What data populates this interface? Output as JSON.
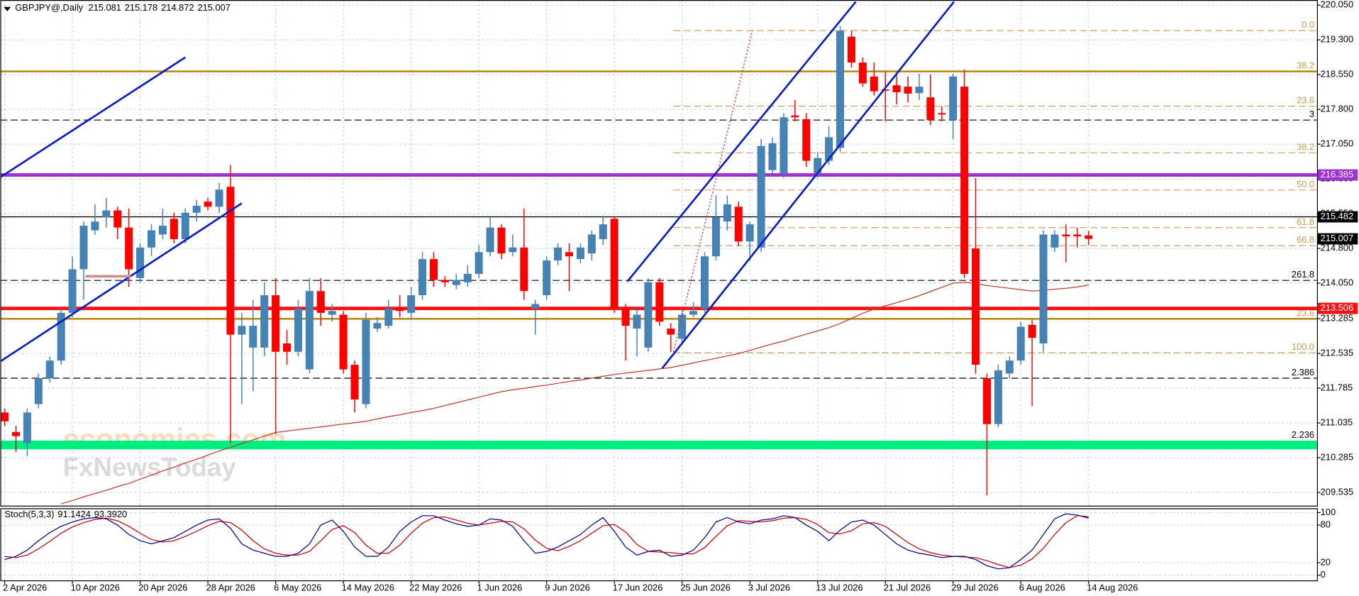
{
  "chart_data": {
    "type": "candlestick",
    "symbol": "GBPJPY@,Daily",
    "categories": [
      "2 Apr 2026",
      null,
      null,
      null,
      null,
      null,
      "10 Apr 2026",
      null,
      null,
      null,
      null,
      null,
      "20 Apr 2026",
      null,
      null,
      null,
      null,
      null,
      "28 Apr 2026",
      null,
      null,
      null,
      null,
      null,
      "6 May 2026",
      null,
      null,
      null,
      null,
      null,
      "14 May 2026",
      null,
      null,
      null,
      null,
      null,
      "22 May 2026",
      null,
      null,
      null,
      null,
      null,
      "1 Jun 2026",
      null,
      null,
      null,
      null,
      null,
      "9 Jun 2026",
      null,
      null,
      null,
      null,
      null,
      "17 Jun 2026",
      null,
      null,
      null,
      null,
      null,
      "25 Jun 2026",
      null,
      null,
      null,
      null,
      null,
      "3 Jul 2026",
      null,
      null,
      null,
      null,
      null,
      "13 Jul 2026",
      null,
      null,
      null,
      null,
      null,
      "21 Jul 2026",
      null,
      null,
      null,
      null,
      null,
      "29 Jul 2026",
      null,
      null,
      null,
      null,
      null,
      "6 Aug 2026",
      null,
      null,
      null,
      null,
      null,
      "14 Aug 2026"
    ],
    "ohlc": [
      [
        211.26,
        211.35,
        210.97,
        211.07
      ],
      [
        210.84,
        210.97,
        210.41,
        210.75
      ],
      [
        210.6,
        211.35,
        210.32,
        211.26
      ],
      [
        211.44,
        212.1,
        211.35,
        212.0
      ],
      [
        212.0,
        212.47,
        211.91,
        212.38
      ],
      [
        212.38,
        213.5,
        212.29,
        213.41
      ],
      [
        213.41,
        214.63,
        213.32,
        214.35
      ],
      [
        214.35,
        215.38,
        213.69,
        215.29
      ],
      [
        215.19,
        215.75,
        215.1,
        215.38
      ],
      [
        215.47,
        215.89,
        215.25,
        215.62
      ],
      [
        215.62,
        215.7,
        215.0,
        215.25
      ],
      [
        215.25,
        215.66,
        213.97,
        214.35
      ],
      [
        214.16,
        214.91,
        214.07,
        214.82
      ],
      [
        214.82,
        215.32,
        214.63,
        215.19
      ],
      [
        215.1,
        215.66,
        215.0,
        215.29
      ],
      [
        215.44,
        215.57,
        214.91,
        215.0
      ],
      [
        215.0,
        215.66,
        214.91,
        215.57
      ],
      [
        215.57,
        215.85,
        215.38,
        215.72
      ],
      [
        215.81,
        215.89,
        215.62,
        215.7
      ],
      [
        215.7,
        216.22,
        215.57,
        216.07
      ],
      [
        216.13,
        216.6,
        210.6,
        212.94
      ],
      [
        212.94,
        213.41,
        211.44,
        213.13
      ],
      [
        212.66,
        213.69,
        211.72,
        213.13
      ],
      [
        212.66,
        214.07,
        212.47,
        213.79
      ],
      [
        213.79,
        214.16,
        210.79,
        212.57
      ],
      [
        212.75,
        213.04,
        212.29,
        212.57
      ],
      [
        212.57,
        213.69,
        212.47,
        213.5
      ],
      [
        212.19,
        214.16,
        212.1,
        213.88
      ],
      [
        213.88,
        214.16,
        213.13,
        213.41
      ],
      [
        213.37,
        213.6,
        213.22,
        213.45
      ],
      [
        213.37,
        213.45,
        212.1,
        212.19
      ],
      [
        212.29,
        212.38,
        211.26,
        211.54
      ],
      [
        211.44,
        213.41,
        211.35,
        213.26
      ],
      [
        213.07,
        213.32,
        213.0,
        213.19
      ],
      [
        213.13,
        213.69,
        213.07,
        213.5
      ],
      [
        213.5,
        213.79,
        213.32,
        213.45
      ],
      [
        213.41,
        213.97,
        213.26,
        213.79
      ],
      [
        213.79,
        214.72,
        213.69,
        214.57
      ],
      [
        214.57,
        214.72,
        213.97,
        214.12
      ],
      [
        214.12,
        214.2,
        213.97,
        214.07
      ],
      [
        214.01,
        214.25,
        213.92,
        214.12
      ],
      [
        214.07,
        214.44,
        213.97,
        214.25
      ],
      [
        214.25,
        214.87,
        214.16,
        214.72
      ],
      [
        214.72,
        215.47,
        214.63,
        215.25
      ],
      [
        215.25,
        215.32,
        214.57,
        214.69
      ],
      [
        214.72,
        215.1,
        214.63,
        214.82
      ],
      [
        214.82,
        215.66,
        213.69,
        213.88
      ],
      [
        213.5,
        213.69,
        212.94,
        213.6
      ],
      [
        213.79,
        214.63,
        213.69,
        214.54
      ],
      [
        214.54,
        214.91,
        214.44,
        214.82
      ],
      [
        214.72,
        214.91,
        213.88,
        214.63
      ],
      [
        214.57,
        214.91,
        214.48,
        214.82
      ],
      [
        214.69,
        215.19,
        214.54,
        215.1
      ],
      [
        215.0,
        215.51,
        214.87,
        215.32
      ],
      [
        215.44,
        215.47,
        213.41,
        213.5
      ],
      [
        213.5,
        213.6,
        212.38,
        213.13
      ],
      [
        213.07,
        213.5,
        212.47,
        213.37
      ],
      [
        212.66,
        214.16,
        212.57,
        214.07
      ],
      [
        214.07,
        214.16,
        213.13,
        213.22
      ],
      [
        213.07,
        213.19,
        212.57,
        212.94
      ],
      [
        212.85,
        213.5,
        212.75,
        213.37
      ],
      [
        213.37,
        213.64,
        213.32,
        213.45
      ],
      [
        213.5,
        214.72,
        213.41,
        214.63
      ],
      [
        214.63,
        215.94,
        214.54,
        215.47
      ],
      [
        215.38,
        215.94,
        215.19,
        215.75
      ],
      [
        215.7,
        215.81,
        214.85,
        214.95
      ],
      [
        214.95,
        215.38,
        214.54,
        215.32
      ],
      [
        214.82,
        217.16,
        214.72,
        217.01
      ],
      [
        216.49,
        217.2,
        216.41,
        217.07
      ],
      [
        216.41,
        217.72,
        216.32,
        217.63
      ],
      [
        217.67,
        218.0,
        217.54,
        217.63
      ],
      [
        217.59,
        217.72,
        216.56,
        216.69
      ],
      [
        216.41,
        216.88,
        216.32,
        216.75
      ],
      [
        216.69,
        217.44,
        216.6,
        217.2
      ],
      [
        216.97,
        219.6,
        216.88,
        219.5
      ],
      [
        219.37,
        219.5,
        218.7,
        218.81
      ],
      [
        218.81,
        218.92,
        218.29,
        218.36
      ],
      [
        218.51,
        218.81,
        218.1,
        218.19
      ],
      [
        218.23,
        218.62,
        217.54,
        218.21
      ],
      [
        218.32,
        218.57,
        217.91,
        218.17
      ],
      [
        218.29,
        218.51,
        217.95,
        218.14
      ],
      [
        218.15,
        218.57,
        218.0,
        218.29
      ],
      [
        218.06,
        218.55,
        217.46,
        217.57
      ],
      [
        217.72,
        217.87,
        217.54,
        217.69
      ],
      [
        217.57,
        218.57,
        217.16,
        218.51
      ],
      [
        218.29,
        218.66,
        214.16,
        214.25
      ],
      [
        214.8,
        216.32,
        212.1,
        212.29
      ],
      [
        212.0,
        212.1,
        209.47,
        211.01
      ],
      [
        211.01,
        212.29,
        210.94,
        212.17
      ],
      [
        212.1,
        212.47,
        212.0,
        212.38
      ],
      [
        212.38,
        213.22,
        212.29,
        213.11
      ],
      [
        213.15,
        213.26,
        211.4,
        212.87
      ],
      [
        212.75,
        215.19,
        212.57,
        215.1
      ],
      [
        214.82,
        215.19,
        214.72,
        215.1
      ],
      [
        215.1,
        215.32,
        214.5,
        215.06
      ],
      [
        215.1,
        215.25,
        214.82,
        215.06
      ],
      [
        215.081,
        215.178,
        214.872,
        215.007
      ]
    ],
    "colors": {
      "up": "#4682b4",
      "down": "#ff0000"
    },
    "ma": {
      "color": "#c0392b",
      "values": [
        null,
        null,
        null,
        null,
        null,
        209.29,
        209.36,
        209.44,
        209.51,
        209.58,
        209.66,
        209.73,
        209.82,
        209.91,
        210.0,
        210.08,
        210.17,
        210.25,
        210.34,
        210.43,
        210.51,
        210.59,
        210.67,
        210.75,
        210.83,
        210.86,
        210.89,
        210.92,
        210.95,
        210.98,
        211.01,
        211.04,
        211.07,
        211.12,
        211.17,
        211.21,
        211.26,
        211.3,
        211.35,
        211.41,
        211.47,
        211.53,
        211.59,
        211.65,
        211.71,
        211.75,
        211.78,
        211.82,
        211.85,
        211.89,
        211.93,
        211.96,
        212.0,
        212.04,
        212.08,
        212.11,
        212.14,
        212.17,
        212.2,
        212.23,
        212.28,
        212.33,
        212.38,
        212.43,
        212.48,
        212.53,
        212.6,
        212.67,
        212.74,
        212.8,
        212.88,
        212.95,
        213.02,
        213.09,
        213.18,
        213.29,
        213.4,
        213.49,
        213.56,
        213.63,
        213.7,
        213.78,
        213.87,
        213.96,
        214.05,
        214.07,
        214.04,
        214.0,
        213.97,
        213.94,
        213.91,
        213.88,
        213.9,
        213.92,
        213.94,
        213.97,
        214.01
      ]
    },
    "ylim": [
      209.25,
      220.16
    ],
    "yticks": [
      209.535,
      210.285,
      211.035,
      211.785,
      212.535,
      213.285,
      {
        "value": 214.05,
        "label": "214.050"
      },
      {
        "value": 214.8,
        "label": "214.800"
      },
      {
        "value": 215.55,
        "label": "215.550"
      },
      {
        "value": 216.3,
        "label": "216.300"
      },
      {
        "value": 217.05,
        "label": "217.050"
      },
      {
        "value": 217.8,
        "label": "217.800"
      },
      {
        "value": 218.55,
        "label": "218.550"
      },
      {
        "value": 219.3,
        "label": "219.300"
      },
      {
        "value": 220.05,
        "label": "220.050"
      }
    ],
    "grid": true,
    "price_levels": [
      {
        "value": 216.385,
        "color": "#a030d0"
      },
      {
        "value": 215.482,
        "color": "#000000"
      },
      {
        "value": 213.506,
        "color": "#ff1010"
      }
    ],
    "current_price_color": "#000000",
    "gold_levels": [
      {
        "value": 218.62,
        "label": "38.2"
      },
      {
        "value": 213.28,
        "label": "23.6"
      }
    ],
    "fib_levels": [
      {
        "value": 219.5,
        "label": "0.0"
      },
      {
        "value": 217.87,
        "label": "23.6"
      },
      {
        "value": 216.86,
        "label": "38.2"
      },
      {
        "value": 216.06,
        "label": "50.0"
      },
      {
        "value": 215.25,
        "label": "61.8"
      },
      {
        "value": 214.86,
        "label": "66.8"
      },
      {
        "value": 212.55,
        "label": "100.0"
      }
    ],
    "dashed_levels": [
      {
        "value": 217.57,
        "label": "3"
      },
      {
        "value": 214.11,
        "label": "261.8"
      },
      {
        "value": 212.0,
        "label": "2.386"
      }
    ],
    "support_zone": {
      "value": 210.56,
      "label": "2.236",
      "color": "#00ee80"
    },
    "stoch": {
      "name": "Stoch(5,3,3)",
      "k_color": "#00008b",
      "d_color": "#cc0000",
      "k": [
        25,
        30,
        40,
        55,
        68,
        78,
        85,
        90,
        92,
        90,
        80,
        65,
        55,
        50,
        55,
        60,
        70,
        80,
        88,
        90,
        75,
        50,
        40,
        35,
        30,
        30,
        35,
        50,
        80,
        88,
        70,
        45,
        30,
        30,
        45,
        70,
        85,
        95,
        95,
        88,
        82,
        78,
        80,
        90,
        88,
        78,
        55,
        35,
        38,
        45,
        55,
        65,
        80,
        92,
        70,
        45,
        32,
        38,
        40,
        30,
        32,
        40,
        60,
        85,
        92,
        85,
        82,
        88,
        90,
        95,
        92,
        80,
        70,
        55,
        72,
        85,
        88,
        80,
        65,
        50,
        40,
        35,
        32,
        28,
        30,
        30,
        25,
        15,
        10,
        12,
        25,
        40,
        65,
        90,
        98,
        96,
        91.1424
      ],
      "d": [
        30,
        28,
        32,
        42,
        54,
        67,
        77,
        84,
        89,
        91,
        87,
        78,
        67,
        57,
        53,
        55,
        62,
        70,
        79,
        86,
        84,
        72,
        55,
        42,
        35,
        32,
        32,
        38,
        55,
        73,
        79,
        68,
        48,
        35,
        35,
        48,
        67,
        83,
        92,
        93,
        88,
        83,
        80,
        83,
        86,
        85,
        74,
        56,
        43,
        39,
        46,
        55,
        67,
        79,
        81,
        69,
        49,
        38,
        37,
        36,
        34,
        34,
        44,
        62,
        79,
        87,
        86,
        85,
        87,
        91,
        92,
        89,
        81,
        68,
        66,
        71,
        82,
        84,
        78,
        65,
        52,
        42,
        36,
        32,
        30,
        29,
        28,
        23,
        17,
        12,
        16,
        26,
        43,
        65,
        84,
        95,
        93.392
      ],
      "value_labels": [
        "91.1424",
        "93.3920"
      ],
      "ylim": [
        -8.3,
        106.9
      ],
      "yticks": [
        0,
        20,
        80,
        100
      ]
    },
    "watermark": [
      "economies.com",
      "FxNewsToday"
    ]
  }
}
